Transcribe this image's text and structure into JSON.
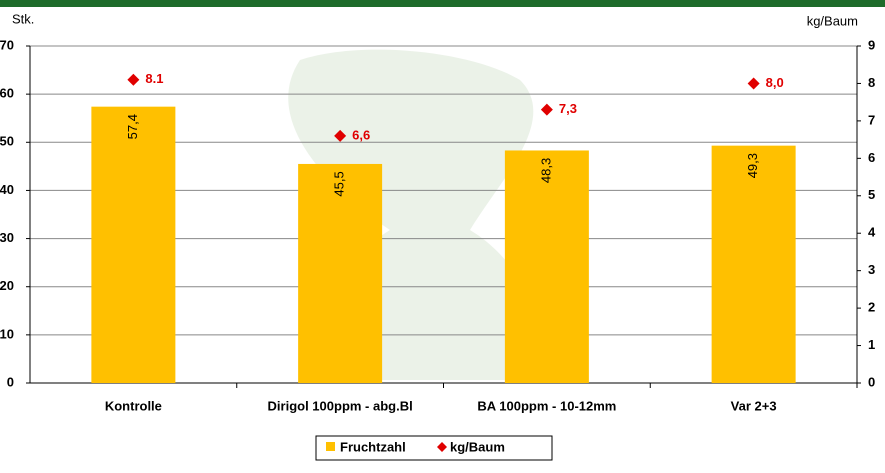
{
  "chart_data": {
    "type": "bar",
    "y_label": "Stk.",
    "y2_label": "kg/Baum",
    "categories": [
      "Kontrolle",
      "Dirigol 100ppm - abg.Bl",
      "BA 100ppm - 10-12mm",
      "Var 2+3"
    ],
    "series": [
      {
        "name": "Fruchtzahl",
        "color": "#ffc000",
        "values": [
          57.4,
          45.5,
          48.3,
          49.3
        ],
        "value_labels": [
          "57,4",
          "45,5",
          "48,3",
          "49,3"
        ]
      },
      {
        "name": "kg/Baum",
        "color": "#e00000",
        "axis": "y2",
        "marker": "diamond",
        "values": [
          8.1,
          6.6,
          7.3,
          8.0
        ],
        "value_labels": [
          "8.1",
          "6,6",
          "7,3",
          "8,0"
        ]
      }
    ],
    "ylim": [
      0,
      70
    ],
    "yticks": [
      0,
      10,
      20,
      30,
      40,
      50,
      60,
      70
    ],
    "y2lim": [
      0,
      9
    ],
    "y2ticks": [
      0,
      1,
      2,
      3,
      4,
      5,
      6,
      7,
      8,
      9
    ],
    "grid": true,
    "legend": "bottom"
  }
}
